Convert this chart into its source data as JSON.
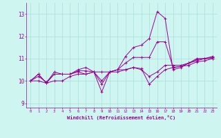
{
  "xlabel": "Windchill (Refroidissement éolien,°C)",
  "ylabel": "",
  "bg_color": "#cef5f0",
  "line_color": "#990099",
  "grid_color": "#aadddd",
  "xlim": [
    -0.5,
    23.5
  ],
  "ylim": [
    8.8,
    13.5
  ],
  "yticks": [
    9,
    10,
    11,
    12,
    13
  ],
  "xticks": [
    0,
    1,
    2,
    3,
    4,
    5,
    6,
    7,
    8,
    9,
    10,
    11,
    12,
    13,
    14,
    15,
    16,
    17,
    18,
    19,
    20,
    21,
    22,
    23
  ],
  "series": [
    [
      10.0,
      10.3,
      9.9,
      10.4,
      10.3,
      10.3,
      10.5,
      10.6,
      10.4,
      9.5,
      10.4,
      10.5,
      11.1,
      11.5,
      11.6,
      11.9,
      13.1,
      12.8,
      10.5,
      10.6,
      10.8,
      11.0,
      11.0,
      11.1
    ],
    [
      10.0,
      10.3,
      9.9,
      10.3,
      10.3,
      10.3,
      10.4,
      10.3,
      10.4,
      10.4,
      10.4,
      10.5,
      10.5,
      10.6,
      10.5,
      10.2,
      10.4,
      10.7,
      10.7,
      10.7,
      10.8,
      10.9,
      11.0,
      11.0
    ],
    [
      10.0,
      10.2,
      9.95,
      10.3,
      10.3,
      10.3,
      10.45,
      10.45,
      10.4,
      10.0,
      10.4,
      10.5,
      10.8,
      11.05,
      11.05,
      11.05,
      11.75,
      11.75,
      10.6,
      10.65,
      10.8,
      10.95,
      11.0,
      11.05
    ],
    [
      10.0,
      10.0,
      9.9,
      10.0,
      10.0,
      10.2,
      10.3,
      10.3,
      10.4,
      9.85,
      10.4,
      10.4,
      10.5,
      10.6,
      10.55,
      9.85,
      10.2,
      10.5,
      10.6,
      10.65,
      10.7,
      10.85,
      10.9,
      11.0
    ]
  ]
}
